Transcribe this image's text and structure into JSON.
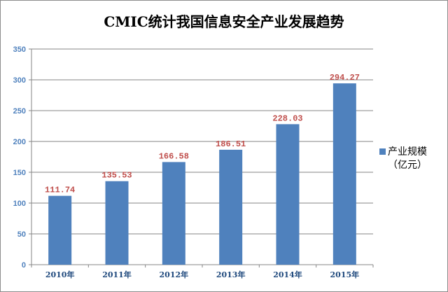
{
  "chart_data": {
    "type": "bar",
    "title": "CMIC统计我国信息安全产业发展趋势",
    "categories": [
      "2010年",
      "2011年",
      "2012年",
      "2013年",
      "2014年",
      "2015年"
    ],
    "series": [
      {
        "name": "产业规模（亿元）",
        "legend_lines": [
          "产业规模",
          "（亿元）"
        ],
        "values": [
          111.74,
          135.53,
          166.58,
          186.51,
          228.03,
          294.27
        ],
        "labels": [
          "111.74",
          "135.53",
          "166.58",
          "186.51",
          "228.03",
          "294.27"
        ],
        "color": "#4f81bd"
      }
    ],
    "ylim": [
      0,
      350
    ],
    "yticks": [
      0,
      50,
      100,
      150,
      200,
      250,
      300,
      350
    ],
    "grid": true,
    "legend_position": "right",
    "xlabel": "",
    "ylabel": ""
  },
  "colors": {
    "bar": "#4f81bd",
    "data_label": "#c0504d",
    "axis": "#868686",
    "grid": "#868686"
  }
}
